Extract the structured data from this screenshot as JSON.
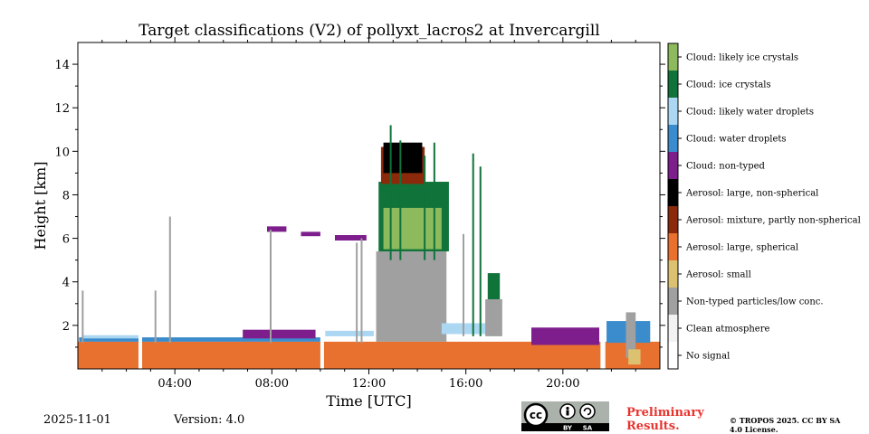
{
  "chart_data": {
    "type": "heatmap",
    "title": "Target classifications (V2) of pollyxt_lacros2 at Invercargill",
    "xlabel": "Time [UTC]",
    "ylabel": "Height [km]",
    "xlim": [
      0,
      24
    ],
    "ylim": [
      0,
      15
    ],
    "xticks": [
      {
        "value": 4,
        "label": "04:00"
      },
      {
        "value": 8,
        "label": "08:00"
      },
      {
        "value": 12,
        "label": "12:00"
      },
      {
        "value": 16,
        "label": "16:00"
      },
      {
        "value": 20,
        "label": "20:00"
      }
    ],
    "yticks": [
      {
        "value": 2,
        "label": "2"
      },
      {
        "value": 4,
        "label": "4"
      },
      {
        "value": 6,
        "label": "6"
      },
      {
        "value": 8,
        "label": "8"
      },
      {
        "value": 10,
        "label": "10"
      },
      {
        "value": 12,
        "label": "12"
      },
      {
        "value": 14,
        "label": "14"
      }
    ],
    "classes": [
      {
        "label": "No signal",
        "color": "#ffffff"
      },
      {
        "label": "Clean atmosphere",
        "color": "#f2f2f2"
      },
      {
        "label": "Non-typed particles/low conc.",
        "color": "#a0a0a0"
      },
      {
        "label": "Aerosol: small",
        "color": "#dcc170"
      },
      {
        "label": "Aerosol: large, spherical",
        "color": "#e8712f"
      },
      {
        "label": "Aerosol: mixture, partly non-spherical",
        "color": "#8a2a0a"
      },
      {
        "label": "Aerosol: large, non-spherical",
        "color": "#000000"
      },
      {
        "label": "Cloud: non-typed",
        "color": "#7d1e8c"
      },
      {
        "label": "Cloud: water droplets",
        "color": "#3b8ccc"
      },
      {
        "label": "Cloud: likely water droplets",
        "color": "#abd7f2"
      },
      {
        "label": "Cloud: ice crystals",
        "color": "#10733a"
      },
      {
        "label": "Cloud: likely ice crystals",
        "color": "#8cba5c"
      }
    ],
    "regions": [
      {
        "class": "Aerosol: large, spherical",
        "t": [
          0,
          24
        ],
        "h": [
          0,
          1.25
        ]
      },
      {
        "class": "Cloud: water droplets",
        "t": [
          0.05,
          10.0
        ],
        "h": [
          1.25,
          1.45
        ]
      },
      {
        "class": "Cloud: likely water droplets",
        "t": [
          0.2,
          2.6
        ],
        "h": [
          1.4,
          1.55
        ]
      },
      {
        "class": "Cloud: non-typed",
        "t": [
          6.8,
          9.8
        ],
        "h": [
          1.4,
          1.8
        ]
      },
      {
        "class": "Cloud: likely water droplets",
        "t": [
          10.2,
          12.2
        ],
        "h": [
          1.5,
          1.75
        ]
      },
      {
        "class": "Cloud: non-typed",
        "t": [
          7.8,
          8.6
        ],
        "h": [
          6.3,
          6.55
        ]
      },
      {
        "class": "Cloud: non-typed",
        "t": [
          9.2,
          10.0
        ],
        "h": [
          6.1,
          6.3
        ]
      },
      {
        "class": "Cloud: non-typed",
        "t": [
          10.6,
          11.9
        ],
        "h": [
          5.9,
          6.15
        ]
      },
      {
        "class": "Non-typed particles/low conc.",
        "t": [
          12.3,
          15.2
        ],
        "h": [
          1.25,
          5.4
        ]
      },
      {
        "class": "Cloud: ice crystals",
        "t": [
          12.4,
          15.3
        ],
        "h": [
          5.4,
          8.6
        ]
      },
      {
        "class": "Cloud: likely ice crystals",
        "t": [
          12.6,
          15.0
        ],
        "h": [
          5.5,
          7.4
        ]
      },
      {
        "class": "Aerosol: mixture, partly non-spherical",
        "t": [
          12.5,
          14.3
        ],
        "h": [
          8.5,
          10.2
        ]
      },
      {
        "class": "Aerosol: large, non-spherical",
        "t": [
          12.6,
          14.2
        ],
        "h": [
          9.0,
          10.4
        ]
      },
      {
        "class": "Cloud: likely water droplets",
        "t": [
          15.0,
          17.0
        ],
        "h": [
          1.6,
          2.1
        ]
      },
      {
        "class": "Non-typed particles/low conc.",
        "t": [
          16.8,
          17.5
        ],
        "h": [
          1.5,
          3.2
        ]
      },
      {
        "class": "Cloud: ice crystals",
        "t": [
          16.9,
          17.4
        ],
        "h": [
          3.2,
          4.4
        ]
      },
      {
        "class": "Cloud: non-typed",
        "t": [
          18.7,
          21.5
        ],
        "h": [
          1.1,
          1.9
        ]
      },
      {
        "class": "Cloud: water droplets",
        "t": [
          21.8,
          23.6
        ],
        "h": [
          1.2,
          2.2
        ]
      },
      {
        "class": "Non-typed particles/low conc.",
        "t": [
          22.6,
          23.0
        ],
        "h": [
          0.5,
          2.6
        ]
      },
      {
        "class": "Aerosol: small",
        "t": [
          22.7,
          23.2
        ],
        "h": [
          0.2,
          0.9
        ]
      },
      {
        "class": "No signal",
        "t": [
          2.5,
          2.65
        ],
        "h": [
          0,
          1.7
        ]
      },
      {
        "class": "No signal",
        "t": [
          10.0,
          10.15
        ],
        "h": [
          0,
          1.7
        ]
      },
      {
        "class": "No signal",
        "t": [
          21.55,
          21.75
        ],
        "h": [
          0,
          1.7
        ]
      }
    ],
    "columns": [
      {
        "class": "Non-typed particles/low conc.",
        "t": 0.2,
        "h": [
          1.2,
          3.6
        ]
      },
      {
        "class": "Non-typed particles/low conc.",
        "t": 3.2,
        "h": [
          1.2,
          3.6
        ]
      },
      {
        "class": "Non-typed particles/low conc.",
        "t": 3.8,
        "h": [
          1.2,
          7.0
        ]
      },
      {
        "class": "Non-typed particles/low conc.",
        "t": 7.95,
        "h": [
          1.2,
          6.4
        ]
      },
      {
        "class": "Non-typed particles/low conc.",
        "t": 11.5,
        "h": [
          1.2,
          5.8
        ]
      },
      {
        "class": "Non-typed particles/low conc.",
        "t": 11.7,
        "h": [
          1.2,
          6.0
        ]
      },
      {
        "class": "Cloud: ice crystals",
        "t": 12.9,
        "h": [
          5.0,
          11.2
        ]
      },
      {
        "class": "Cloud: ice crystals",
        "t": 13.3,
        "h": [
          5.0,
          10.5
        ]
      },
      {
        "class": "Cloud: ice crystals",
        "t": 14.3,
        "h": [
          5.0,
          9.8
        ]
      },
      {
        "class": "Cloud: ice crystals",
        "t": 14.7,
        "h": [
          5.0,
          10.4
        ]
      },
      {
        "class": "Non-typed particles/low conc.",
        "t": 15.9,
        "h": [
          1.5,
          6.2
        ]
      },
      {
        "class": "Cloud: ice crystals",
        "t": 16.3,
        "h": [
          1.5,
          9.9
        ]
      },
      {
        "class": "Cloud: ice crystals",
        "t": 16.6,
        "h": [
          1.5,
          9.3
        ]
      }
    ]
  },
  "footer": {
    "date": "2025-11-01",
    "version": "Version: 4.0",
    "preliminary": "Preliminary Results.",
    "copyright": "© TROPOS 2025. CC BY SA 4.0 License.",
    "cc_text": "cc",
    "cc_by": "BY",
    "cc_sa": "SA"
  }
}
